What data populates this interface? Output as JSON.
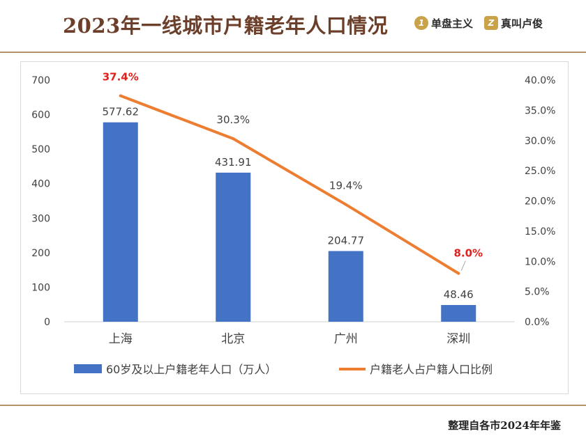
{
  "header": {
    "title": "2023年一线城市户籍老年人口情况",
    "brand1_glyph": "1",
    "brand1": "单盘主义",
    "brand2_glyph": "Z",
    "brand2": "真叫卢俊"
  },
  "footer": {
    "source": "整理自各市2024年年鉴"
  },
  "colors": {
    "bar": "#4472c4",
    "line": "#ed7d31",
    "highlight": "#e0201b",
    "rule": "#b4936a",
    "title": "#6b3f2a"
  },
  "chart_data": {
    "type": "bar+line",
    "categories": [
      "上海",
      "北京",
      "广州",
      "深圳"
    ],
    "series": [
      {
        "name": "60岁及以上户籍老年人口（万人）",
        "type": "bar",
        "axis": "left",
        "values": [
          577.62,
          431.91,
          204.77,
          48.46
        ],
        "labels": [
          "577.62",
          "431.91",
          "204.77",
          "48.46"
        ]
      },
      {
        "name": "户籍老人占户籍人口比例",
        "type": "line",
        "axis": "right",
        "values": [
          37.4,
          30.3,
          19.4,
          8.0
        ],
        "labels": [
          "37.4%",
          "30.3%",
          "19.4%",
          "8.0%"
        ],
        "highlighted": [
          true,
          false,
          false,
          true
        ]
      }
    ],
    "y_left": {
      "min": 0,
      "max": 700,
      "step": 100,
      "ticks": [
        "0",
        "100",
        "200",
        "300",
        "400",
        "500",
        "600",
        "700"
      ]
    },
    "y_right": {
      "min": 0,
      "max": 40,
      "step": 5,
      "ticks": [
        "0.0%",
        "5.0%",
        "10.0%",
        "15.0%",
        "20.0%",
        "25.0%",
        "30.0%",
        "35.0%",
        "40.0%"
      ]
    },
    "grid": false,
    "legend_position": "bottom"
  }
}
